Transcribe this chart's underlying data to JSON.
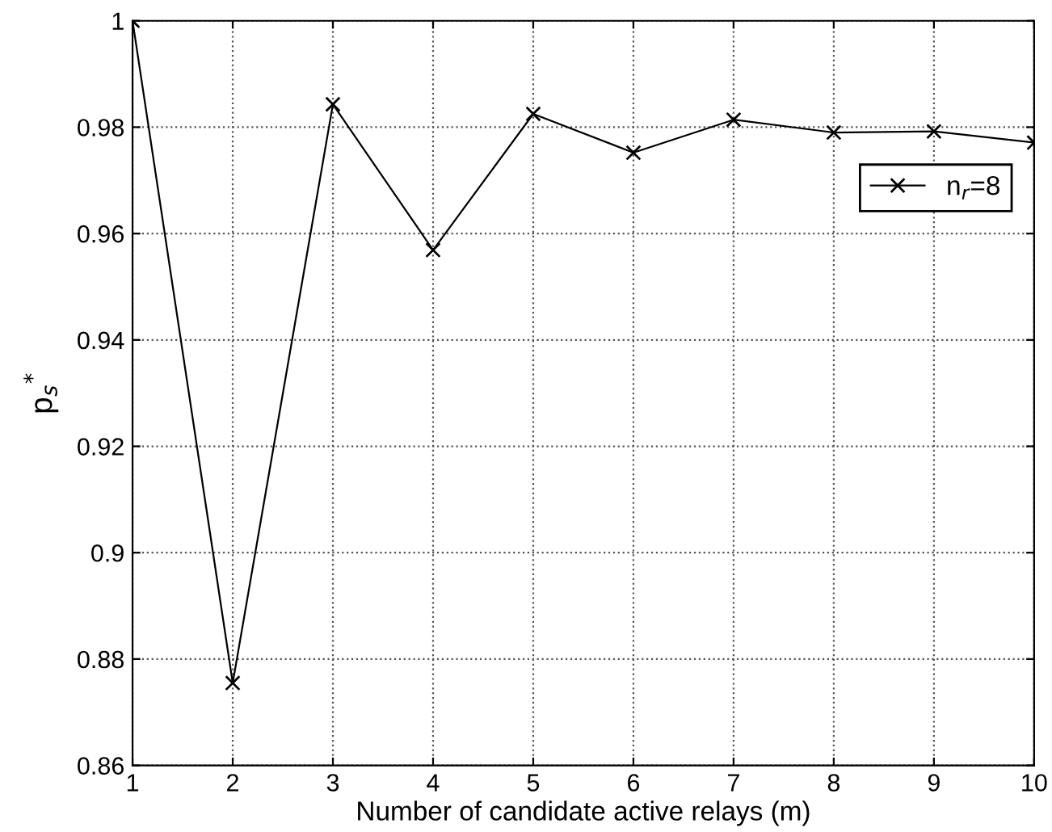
{
  "chart_data": {
    "type": "line",
    "xlabel": "Number of candidate active relays (m)",
    "ylabel": "p$_{s}$$^{*}$",
    "x": [
      1,
      2,
      3,
      4,
      5,
      6,
      7,
      8,
      9,
      10
    ],
    "series": [
      {
        "name": "n$_{r}$=8",
        "color": "#000000",
        "values": [
          1.0,
          0.8755,
          0.9843,
          0.9569,
          0.9825,
          0.9752,
          0.9814,
          0.979,
          0.9792,
          0.9771
        ]
      }
    ],
    "xlim": [
      1,
      10
    ],
    "xticks": [
      1,
      2,
      3,
      4,
      5,
      6,
      7,
      8,
      9,
      10
    ],
    "ylim": [
      0.86,
      1
    ],
    "yticks": [
      0.86,
      0.88,
      0.9,
      0.92,
      0.94,
      0.96,
      0.98,
      1
    ],
    "grid": true,
    "legend": "top right",
    "marker": "cross",
    "line_style": "solid"
  }
}
